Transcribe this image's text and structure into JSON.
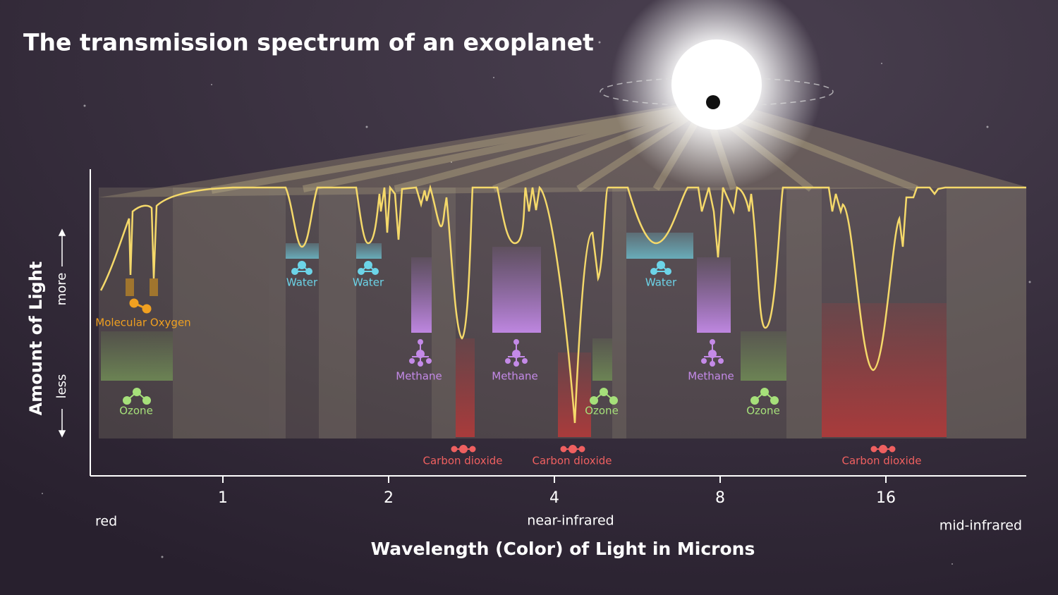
{
  "title": "The transmission spectrum of an exoplanet",
  "y_axis": {
    "label": "Amount of Light",
    "more": "more",
    "less": "less"
  },
  "x_axis": {
    "label": "Wavelength (Color) of Light in Microns",
    "ticks": [
      1,
      2,
      4,
      8,
      16
    ],
    "regions": [
      "red",
      "near-infrared",
      "mid-infrared"
    ]
  },
  "molecules": [
    {
      "label": "Molecular Oxygen"
    },
    {
      "label": "Water"
    },
    {
      "label": "Water"
    },
    {
      "label": "Water"
    },
    {
      "label": "Methane"
    },
    {
      "label": "Methane"
    },
    {
      "label": "Methane"
    },
    {
      "label": "Ozone"
    },
    {
      "label": "Ozone"
    },
    {
      "label": "Ozone"
    },
    {
      "label": "Carbon dioxide"
    },
    {
      "label": "Carbon dioxide"
    },
    {
      "label": "Carbon dioxide"
    }
  ]
}
